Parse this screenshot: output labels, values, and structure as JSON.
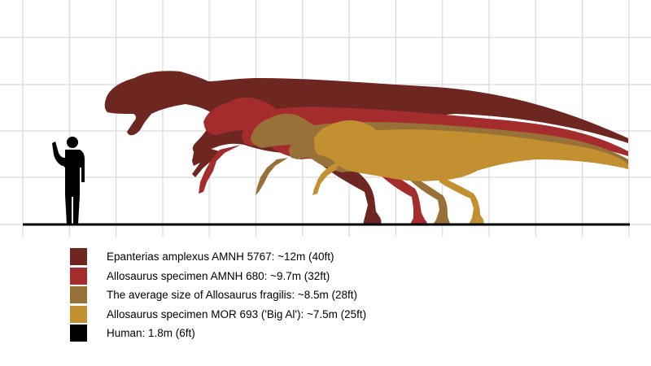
{
  "colors": {
    "epanterias": "#6e2620",
    "amnh680": "#a52c2c",
    "fragilis": "#977138",
    "bigal": "#c29030",
    "human": "#000000",
    "grid": "#d9d9d9",
    "ground": "#000000"
  },
  "legend": [
    {
      "key": "epanterias",
      "label": "Epanterias amplexus AMNH 5767:  ~12m (40ft)"
    },
    {
      "key": "amnh680",
      "label": "Allosaurus specimen AMNH 680:  ~9.7m (32ft)"
    },
    {
      "key": "fragilis",
      "label": "The average size of Allosaurus fragilis:  ~8.5m (28ft)"
    },
    {
      "key": "bigal",
      "label": "Allosaurus specimen MOR 693 ('Big Al'):  ~7.5m (25ft)"
    },
    {
      "key": "human",
      "label": "Human:  1.8m (6ft)"
    }
  ]
}
